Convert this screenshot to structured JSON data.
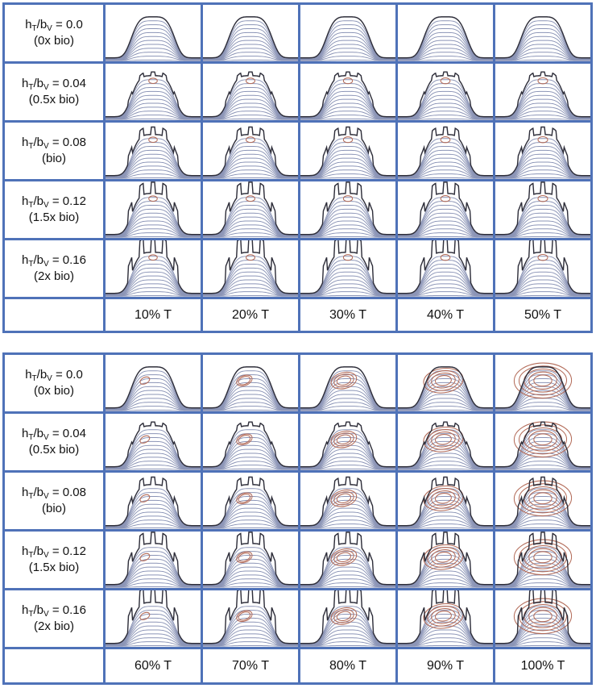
{
  "top_panel": {
    "rows": [
      {
        "ratio_prefix": "h",
        "ratio_sub1": "T",
        "ratio_slash": "/b",
        "ratio_sub2": "V",
        "ratio_value": " = 0.0",
        "bio": "(0x bio)",
        "teeth": 0
      },
      {
        "ratio_prefix": "h",
        "ratio_sub1": "T",
        "ratio_slash": "/b",
        "ratio_sub2": "V",
        "ratio_value": " = 0.04",
        "bio": "(0.5x bio)",
        "teeth": 0.04
      },
      {
        "ratio_prefix": "h",
        "ratio_sub1": "T",
        "ratio_slash": "/b",
        "ratio_sub2": "V",
        "ratio_value": " = 0.08",
        "bio": "(bio)",
        "teeth": 0.08
      },
      {
        "ratio_prefix": "h",
        "ratio_sub1": "T",
        "ratio_slash": "/b",
        "ratio_sub2": "V",
        "ratio_value": " = 0.12",
        "bio": "(1.5x bio)",
        "teeth": 0.12
      },
      {
        "ratio_prefix": "h",
        "ratio_sub1": "T",
        "ratio_slash": "/b",
        "ratio_sub2": "V",
        "ratio_value": " = 0.16",
        "bio": "(2x bio)",
        "teeth": 0.16
      }
    ],
    "columns": [
      "10% T",
      "20% T",
      "30% T",
      "40% T",
      "50% T"
    ],
    "phase": [
      0.1,
      0.2,
      0.3,
      0.4,
      0.5
    ]
  },
  "bottom_panel": {
    "rows": [
      {
        "ratio_prefix": "h",
        "ratio_sub1": "T",
        "ratio_slash": "/b",
        "ratio_sub2": "V",
        "ratio_value": " = 0.0",
        "bio": "(0x bio)",
        "teeth": 0
      },
      {
        "ratio_prefix": "h",
        "ratio_sub1": "T",
        "ratio_slash": "/b",
        "ratio_sub2": "V",
        "ratio_value": " = 0.04",
        "bio": "(0.5x bio)",
        "teeth": 0.04
      },
      {
        "ratio_prefix": "h",
        "ratio_sub1": "T",
        "ratio_slash": "/b",
        "ratio_sub2": "V",
        "ratio_value": " = 0.08",
        "bio": "(bio)",
        "teeth": 0.08
      },
      {
        "ratio_prefix": "h",
        "ratio_sub1": "T",
        "ratio_slash": "/b",
        "ratio_sub2": "V",
        "ratio_value": " = 0.12",
        "bio": "(1.5x bio)",
        "teeth": 0.12
      },
      {
        "ratio_prefix": "h",
        "ratio_sub1": "T",
        "ratio_slash": "/b",
        "ratio_sub2": "V",
        "ratio_value": " = 0.16",
        "bio": "(2x bio)",
        "teeth": 0.16
      }
    ],
    "columns": [
      "60% T",
      "70% T",
      "80% T",
      "90% T",
      "100% T"
    ],
    "phase": [
      0.6,
      0.7,
      0.8,
      0.9,
      1.0
    ]
  },
  "colors": {
    "grid_border": "#4f72b8",
    "streamline": "#8b94b6",
    "vortex": "#b36b58",
    "villus_edge": "#2e2e3a"
  }
}
